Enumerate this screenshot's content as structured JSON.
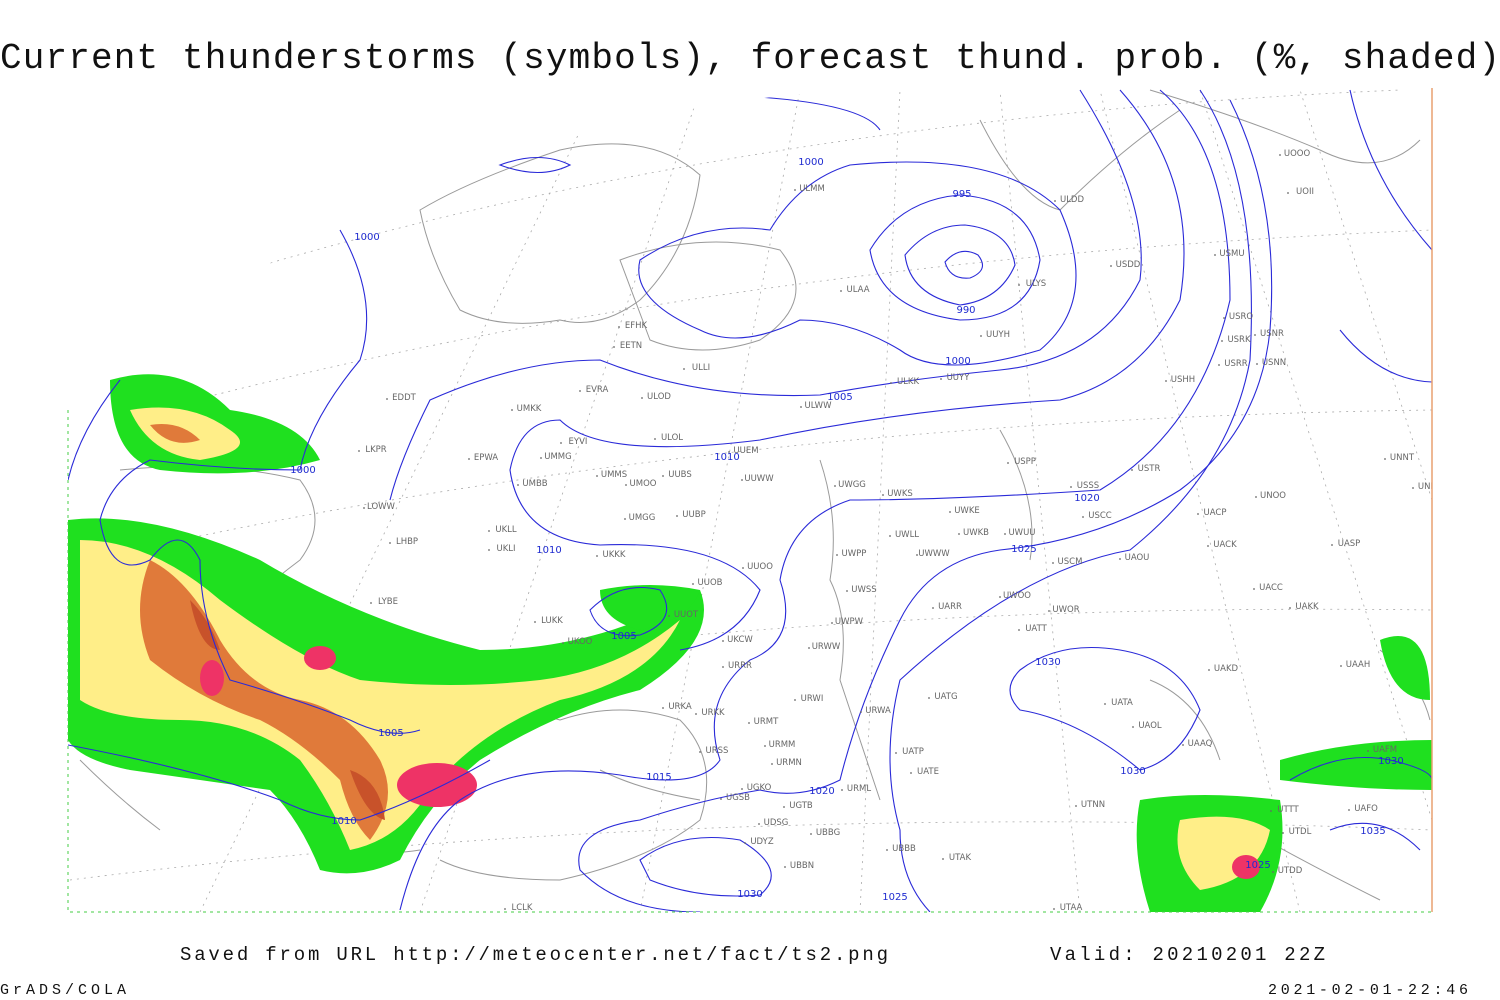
{
  "header": {
    "title": "Current thunderstorms (symbols), forecast thund. prob. (%, shaded)"
  },
  "isobar_labels": [
    1005,
    1000,
    995,
    1000,
    990,
    1000,
    1005,
    1010,
    1000,
    1020,
    1010,
    1025,
    1005,
    1030,
    1005,
    1030,
    1030,
    1015,
    1020,
    1010,
    1035,
    1025,
    1030,
    1025
  ],
  "stations": [
    "ULMM",
    "ULDD",
    "UOOO",
    "UOII",
    "USDD",
    "USMU",
    "ULAA",
    "ULYS",
    "USRO",
    "USNR",
    "USRK",
    "EFHK",
    "EETN",
    "UUYH",
    "USRR",
    "USNN",
    "ULLI",
    "ULKK",
    "UUYY",
    "USHH",
    "EVRA",
    "ULOD",
    "ULWW",
    "EDDT",
    "UMKK",
    "ULOL",
    "UUEM",
    "EYVI",
    "LKPR",
    "EPWA",
    "UMMG",
    "USPP",
    "USSS",
    "USTR",
    "UNNT",
    "UNBB",
    "UMMS",
    "UUBS",
    "UMOO",
    "UUWW",
    "UWGG",
    "UWKS",
    "UNOO",
    "UMBB",
    "LOWW",
    "UWKE",
    "USCC",
    "UACP",
    "UMGG",
    "UUBP",
    "UWLL",
    "UWKB",
    "UWUU",
    "UACK",
    "UASP",
    "LHBP",
    "UKLL",
    "UKLI",
    "UKKK",
    "UUOO",
    "UWPP",
    "UWWW",
    "USCM",
    "UAOU",
    "UUOB",
    "UWSS",
    "UACC",
    "LYBE",
    "UWOO",
    "UARR",
    "UWOR",
    "UAKK",
    "LUKK",
    "UUOT",
    "UWPW",
    "UATT",
    "UKOO",
    "UKCW",
    "URWW",
    "UAKD",
    "UAAH",
    "URRR",
    "URKA",
    "URKK",
    "URWI",
    "URWA",
    "UATG",
    "UATA",
    "UAOL",
    "UAAQ",
    "UAFM",
    "URMT",
    "URMM",
    "URSS",
    "UATP",
    "URMN",
    "UATE",
    "UGKO",
    "UGSB",
    "URML",
    "UTNN",
    "UGTB",
    "UDSG",
    "UBBG",
    "UDYZ",
    "UBBB",
    "UTAK",
    "UBBN",
    "UTDD",
    "LCLK",
    "UTAA",
    "UTTT",
    "UTDL",
    "UAFO"
  ],
  "footer": {
    "source": "Saved from URL http://meteocenter.net/fact/ts2.png",
    "valid": "Valid: 20210201 22Z",
    "software": "GrADS/COLA",
    "timestamp": "2021-02-01-22:46"
  }
}
